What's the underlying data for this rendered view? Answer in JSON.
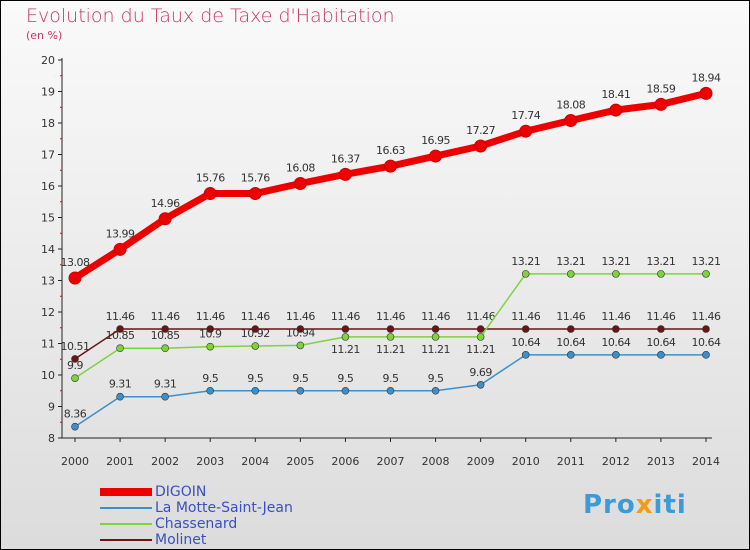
{
  "chart_data": {
    "type": "line",
    "title": "Evolution du Taux de Taxe d'Habitation",
    "subtitle": "(en %)",
    "x": [
      "2000",
      "2001",
      "2002",
      "2003",
      "2004",
      "2005",
      "2006",
      "2007",
      "2008",
      "2009",
      "2010",
      "2011",
      "2012",
      "2013",
      "2014"
    ],
    "ylim": [
      8,
      20
    ],
    "yticks": [
      8,
      9,
      10,
      11,
      12,
      13,
      14,
      15,
      16,
      17,
      18,
      19,
      20
    ],
    "series": [
      {
        "name": "DIGOIN",
        "color": "#ee0000",
        "values": [
          13.08,
          13.99,
          14.96,
          15.76,
          15.76,
          16.08,
          16.37,
          16.63,
          16.95,
          17.27,
          17.74,
          18.08,
          18.41,
          18.59,
          18.94
        ]
      },
      {
        "name": "La Motte-Saint-Jean",
        "color": "#3e8fc9",
        "values": [
          8.36,
          9.31,
          9.31,
          9.5,
          9.5,
          9.5,
          9.5,
          9.5,
          9.5,
          9.69,
          10.64,
          10.64,
          10.64,
          10.64,
          10.64
        ]
      },
      {
        "name": "Chassenard",
        "color": "#7ed23a",
        "values": [
          9.9,
          10.85,
          10.85,
          10.9,
          10.92,
          10.94,
          11.21,
          11.21,
          11.21,
          11.21,
          13.21,
          13.21,
          13.21,
          13.21,
          13.21
        ]
      },
      {
        "name": "Molinet",
        "color": "#6b1414",
        "values": [
          10.51,
          11.46,
          11.46,
          11.46,
          11.46,
          11.46,
          11.46,
          11.46,
          11.46,
          11.46,
          11.46,
          11.46,
          11.46,
          11.46,
          11.46
        ]
      }
    ]
  },
  "logo": {
    "text_a": "Pro",
    "text_b": "x",
    "text_c": "iti"
  }
}
